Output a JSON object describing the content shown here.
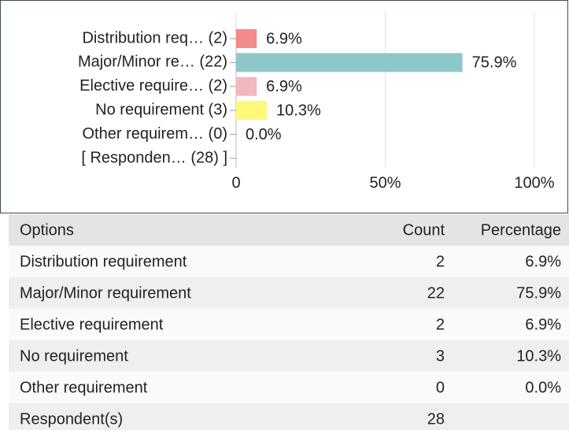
{
  "chart_data": {
    "type": "bar",
    "orientation": "horizontal",
    "categories": [
      "Distribution req… (2)",
      "Major/Minor re… (22)",
      "Elective require… (2)",
      "No requirement (3)",
      "Other requirem… (0)",
      "[ Responden… (28) ]"
    ],
    "values": [
      6.9,
      75.9,
      6.9,
      10.3,
      0,
      null
    ],
    "value_labels": [
      "6.9%",
      "75.9%",
      "6.9%",
      "10.3%",
      "0.0%",
      null
    ],
    "colors": [
      "#f28b8b",
      "#8ec7c9",
      "#f1b9bf",
      "#fdf97b",
      "#cccccc",
      null
    ],
    "xlim": [
      0,
      100
    ],
    "xticks": [
      0,
      {
        "value": 50,
        "label": "50%"
      },
      {
        "value": 100,
        "label": "100%"
      }
    ],
    "grid": true
  },
  "table": {
    "header": [
      "Options",
      "Count",
      "Percentage"
    ],
    "rows": [
      [
        "Distribution requirement",
        "2",
        "6.9%"
      ],
      [
        "Major/Minor requirement",
        "22",
        "75.9%"
      ],
      [
        "Elective requirement",
        "2",
        "6.9%"
      ],
      [
        "No requirement",
        "3",
        "10.3%"
      ],
      [
        "Other requirement",
        "0",
        "0.0%"
      ],
      [
        "Respondent(s)",
        "28"
      ]
    ]
  }
}
